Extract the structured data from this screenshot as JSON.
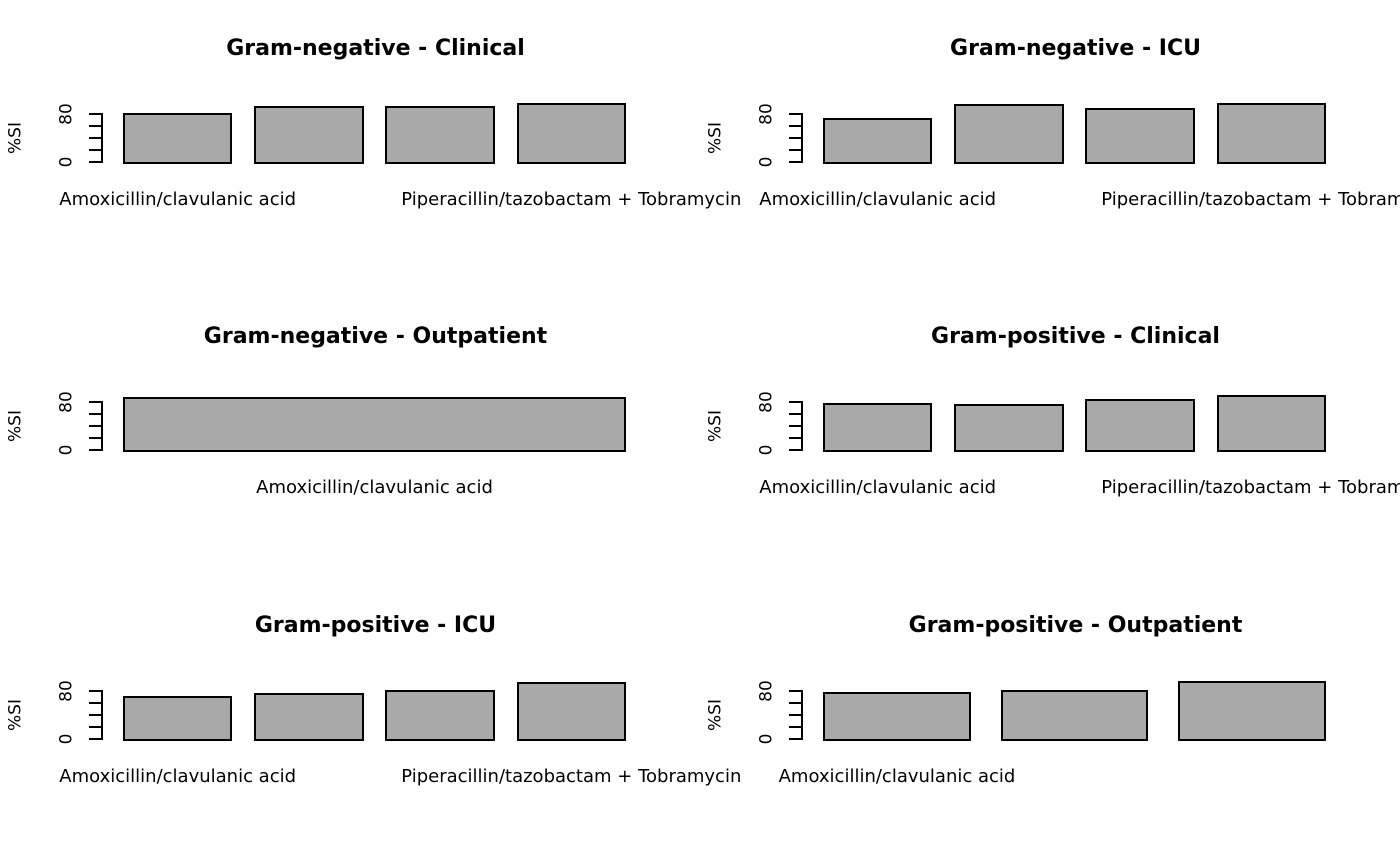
{
  "chart_data": {
    "type": "bar",
    "grid": {
      "rows": 3,
      "cols": 2
    },
    "ylabel": "%SI",
    "ylim": [
      0,
      100
    ],
    "yticks": [
      0,
      20,
      40,
      60,
      80
    ],
    "ytick_labels_visible": [
      "0",
      "80"
    ],
    "grid_lines": "off",
    "legend": "none",
    "bar_fill_color": "#a9a9a9",
    "bar_border_color": "#000000",
    "panels": [
      {
        "title": "Gram-negative - Clinical",
        "values": [
          81,
          94,
          93,
          99
        ],
        "xlabels": [
          {
            "bar": 0,
            "text": "Amoxicillin/clavulanic acid"
          },
          {
            "bar": 3,
            "text": "Piperacillin/tazobactam + Tobramycin"
          }
        ]
      },
      {
        "title": "Gram-negative - ICU",
        "values": [
          73,
          97,
          90,
          99
        ],
        "xlabels": [
          {
            "bar": 0,
            "text": "Amoxicillin/clavulanic acid"
          },
          {
            "bar": 3,
            "text": "Piperacillin/tazobactam + Tobramycin"
          }
        ]
      },
      {
        "title": "Gram-negative - Outpatient",
        "values": [
          89
        ],
        "xlabels": [
          {
            "bar": 0,
            "text": "Amoxicillin/clavulanic acid"
          }
        ]
      },
      {
        "title": "Gram-positive - Clinical",
        "values": [
          78,
          76,
          85,
          91
        ],
        "xlabels": [
          {
            "bar": 0,
            "text": "Amoxicillin/clavulanic acid"
          },
          {
            "bar": 3,
            "text": "Piperacillin/tazobactam + Tobramycin"
          }
        ]
      },
      {
        "title": "Gram-positive - ICU",
        "values": [
          71,
          76,
          82,
          95
        ],
        "xlabels": [
          {
            "bar": 0,
            "text": "Amoxicillin/clavulanic acid"
          },
          {
            "bar": 3,
            "text": "Piperacillin/tazobactam + Tobramycin"
          }
        ]
      },
      {
        "title": "Gram-positive - Outpatient",
        "values": [
          78,
          82,
          97
        ],
        "xlabels": [
          {
            "bar": 0,
            "text": "Amoxicillin/clavulanic acid"
          }
        ]
      }
    ]
  }
}
